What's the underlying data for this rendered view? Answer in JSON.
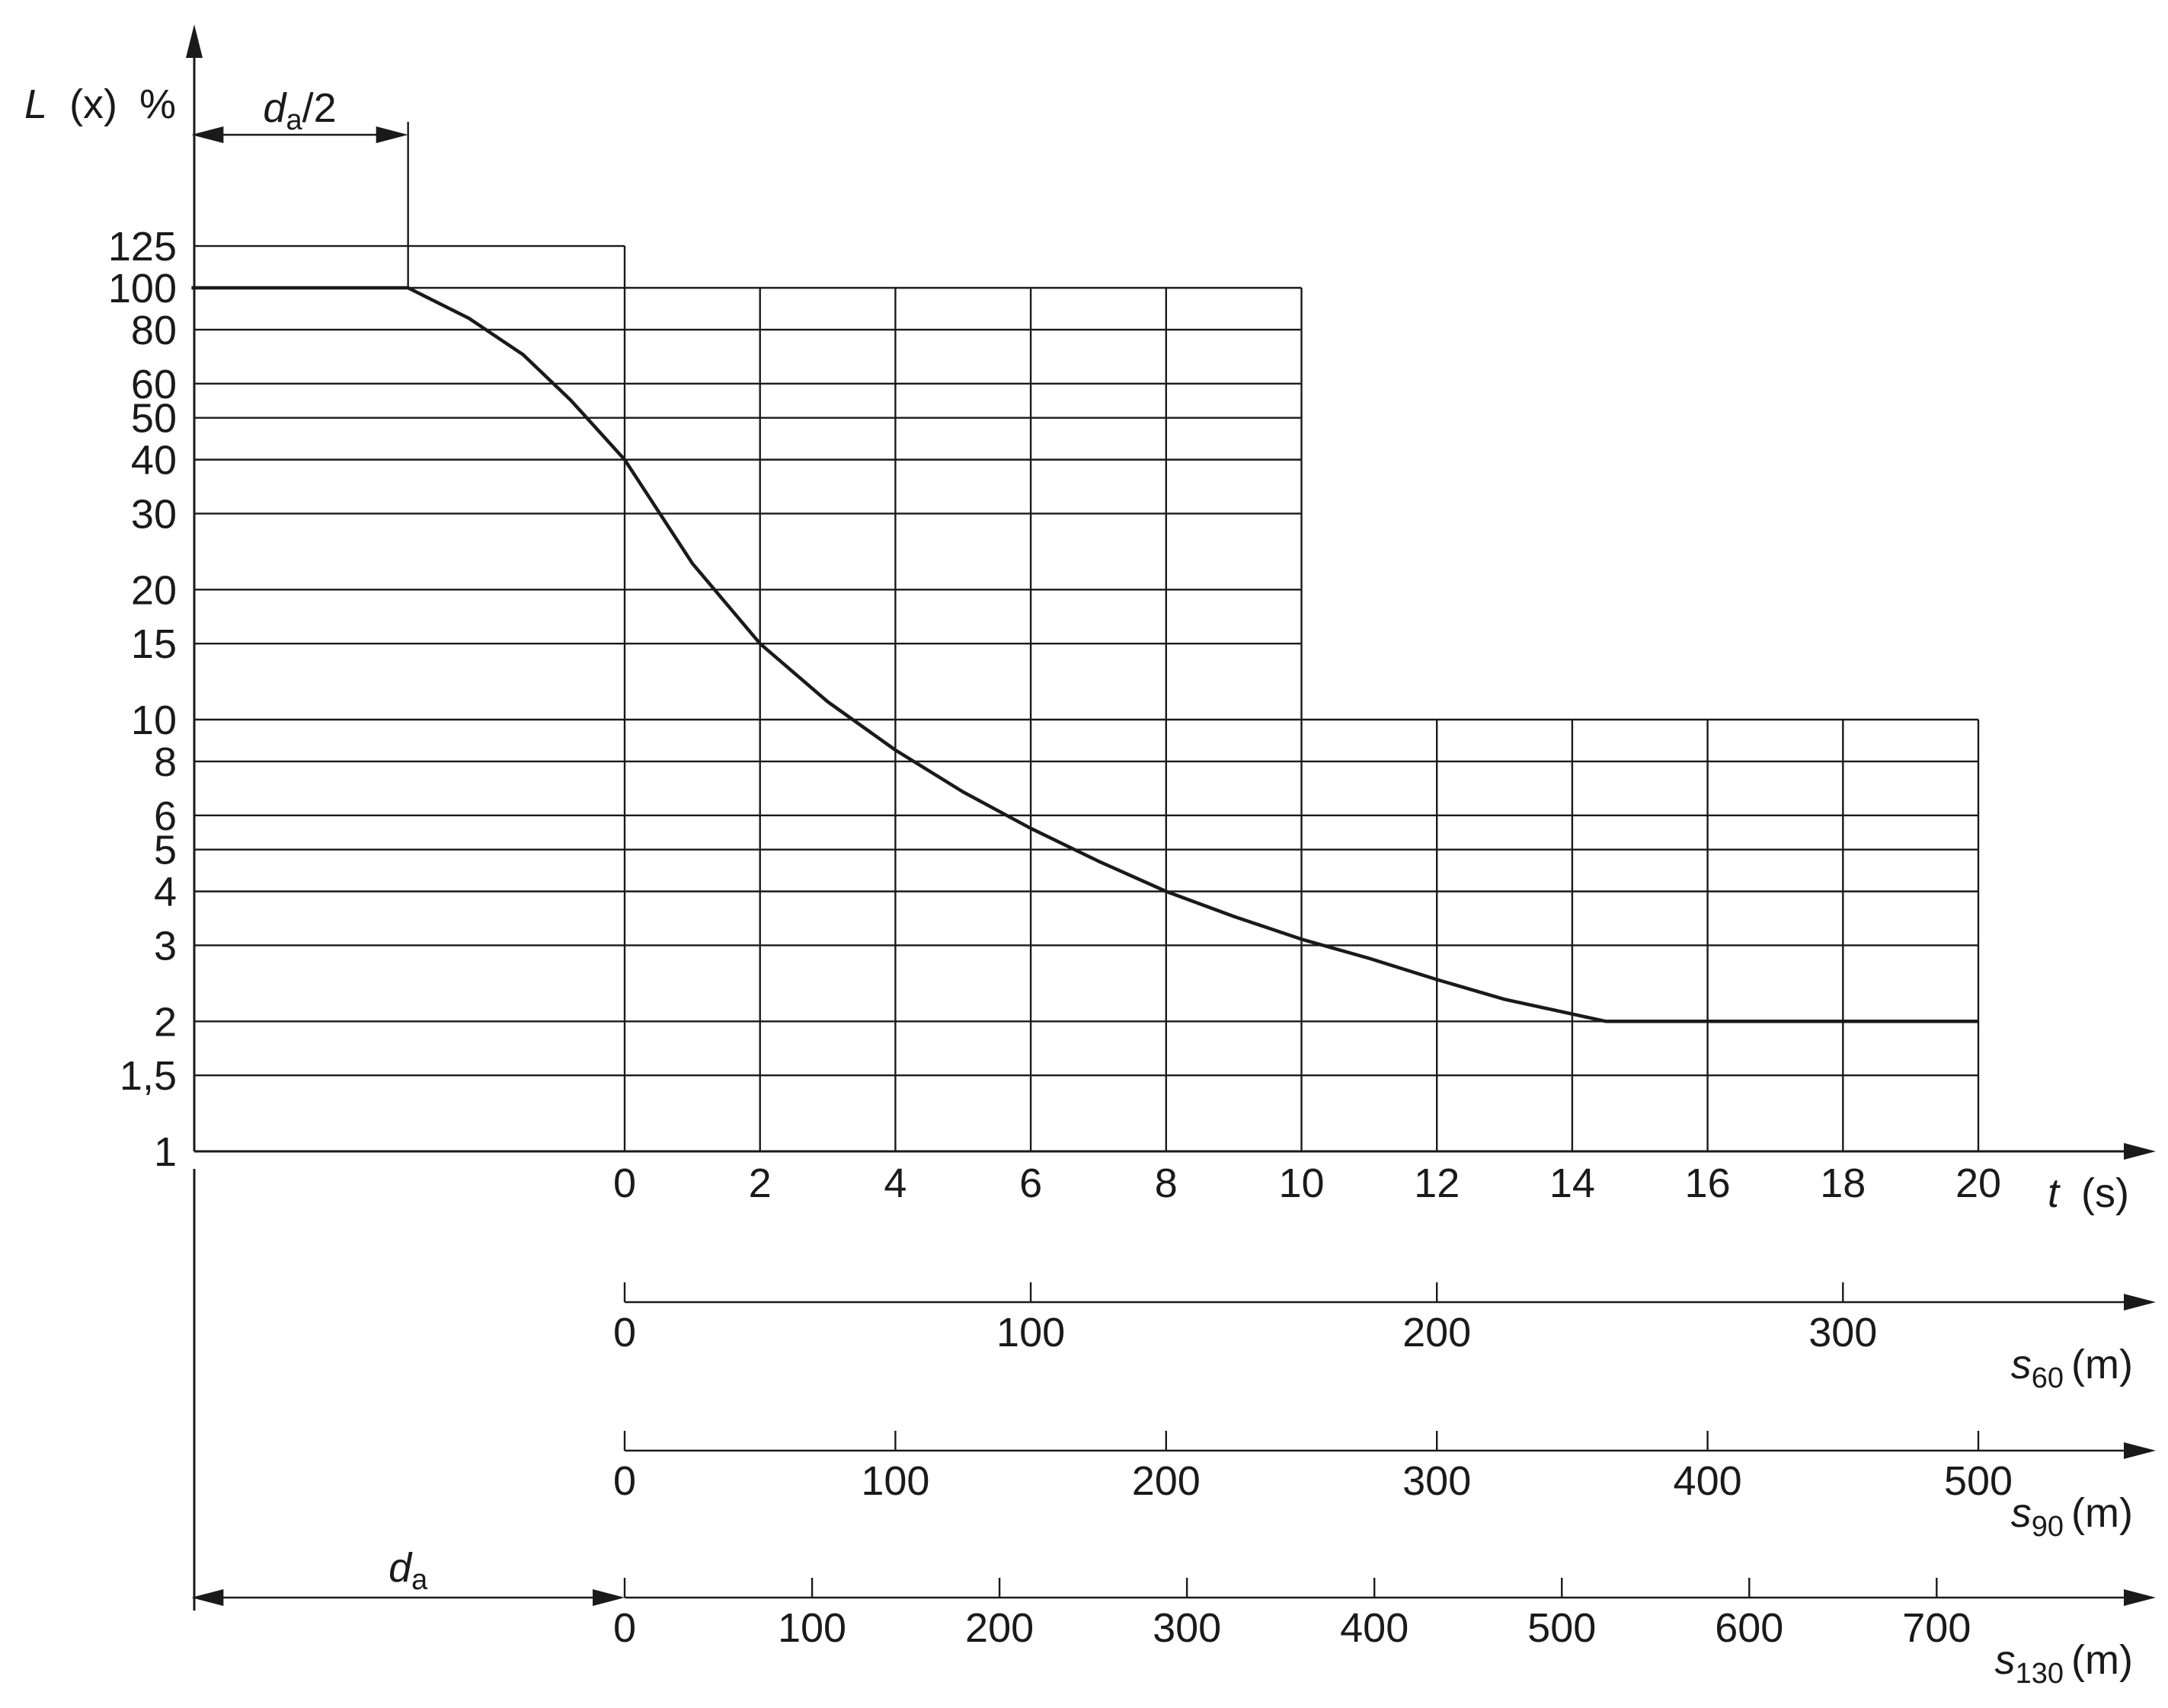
{
  "chart_data": {
    "type": "line",
    "title": "",
    "ylabel": {
      "symbol": "L",
      "arg": "(x)",
      "unit": "%"
    },
    "xlabel": {
      "symbol": "t",
      "unit": "(s)"
    },
    "y_scale": "log",
    "ylim": [
      1,
      125
    ],
    "xlim": [
      -6.4,
      20
    ],
    "y_ticks": [
      {
        "v": 125,
        "label": "125"
      },
      {
        "v": 100,
        "label": "100"
      },
      {
        "v": 80,
        "label": "80"
      },
      {
        "v": 60,
        "label": "60"
      },
      {
        "v": 50,
        "label": "50"
      },
      {
        "v": 40,
        "label": "40"
      },
      {
        "v": 30,
        "label": "30"
      },
      {
        "v": 20,
        "label": "20"
      },
      {
        "v": 15,
        "label": "15"
      },
      {
        "v": 10,
        "label": "10"
      },
      {
        "v": 8,
        "label": "8"
      },
      {
        "v": 6,
        "label": "6"
      },
      {
        "v": 5,
        "label": "5"
      },
      {
        "v": 4,
        "label": "4"
      },
      {
        "v": 3,
        "label": "3"
      },
      {
        "v": 2,
        "label": "2"
      },
      {
        "v": 1.5,
        "label": "1,5"
      },
      {
        "v": 1,
        "label": "1"
      }
    ],
    "x_ticks": [
      0,
      2,
      4,
      6,
      8,
      10,
      12,
      14,
      16,
      18,
      20
    ],
    "envelope": {
      "zone1": {
        "t_from": -6.4,
        "t_to": 0,
        "L_max": 125
      },
      "zone2": {
        "t_from": 0,
        "t_to": 10,
        "L_max": 100
      },
      "zone3": {
        "t_from": 10,
        "t_to": 20,
        "L_max": 10
      }
    },
    "series": [
      {
        "points": [
          {
            "t": -6.4,
            "L": 100
          },
          {
            "t": -3.2,
            "L": 100
          },
          {
            "t": -2.3,
            "L": 85
          },
          {
            "t": -1.5,
            "L": 70
          },
          {
            "t": -0.8,
            "L": 55
          },
          {
            "t": 0,
            "L": 40
          },
          {
            "t": 1,
            "L": 23
          },
          {
            "t": 2,
            "L": 15
          },
          {
            "t": 3,
            "L": 11
          },
          {
            "t": 4,
            "L": 8.5
          },
          {
            "t": 5,
            "L": 6.8
          },
          {
            "t": 6,
            "L": 5.6
          },
          {
            "t": 7,
            "L": 4.7
          },
          {
            "t": 8,
            "L": 4.0
          },
          {
            "t": 9,
            "L": 3.5
          },
          {
            "t": 10,
            "L": 3.1
          },
          {
            "t": 11,
            "L": 2.8
          },
          {
            "t": 12,
            "L": 2.5
          },
          {
            "t": 13,
            "L": 2.25
          },
          {
            "t": 14.5,
            "L": 2.0
          },
          {
            "t": 20,
            "L": 2.0
          }
        ]
      }
    ],
    "dimension_labels": {
      "half": {
        "symbol": "d",
        "sub": "a",
        "suffix": "/2",
        "t_from": -6.4,
        "t_to": -3.2
      },
      "full": {
        "symbol": "d",
        "sub": "a",
        "suffix": "",
        "t_from": -6.4,
        "t_to": 0
      }
    },
    "distance_axes": [
      {
        "symbol": "s",
        "sub": "60",
        "unit": "(m)",
        "m_per_s": 16.667,
        "ticks": [
          0,
          100,
          200,
          300
        ],
        "labels": [
          "0",
          "100",
          "200",
          "300"
        ]
      },
      {
        "symbol": "s",
        "sub": "90",
        "unit": "(m)",
        "m_per_s": 25,
        "ticks": [
          0,
          100,
          200,
          300,
          400,
          500
        ],
        "labels": [
          "0",
          "100",
          "200",
          "300",
          "400",
          "500"
        ]
      },
      {
        "symbol": "s",
        "sub": "130",
        "unit": "(m)",
        "m_per_s": 36.111,
        "ticks": [
          0,
          100,
          200,
          300,
          400,
          500,
          600,
          700
        ],
        "labels": [
          "0",
          "100",
          "200",
          "300",
          "400",
          "500",
          "600",
          "700"
        ]
      }
    ]
  }
}
